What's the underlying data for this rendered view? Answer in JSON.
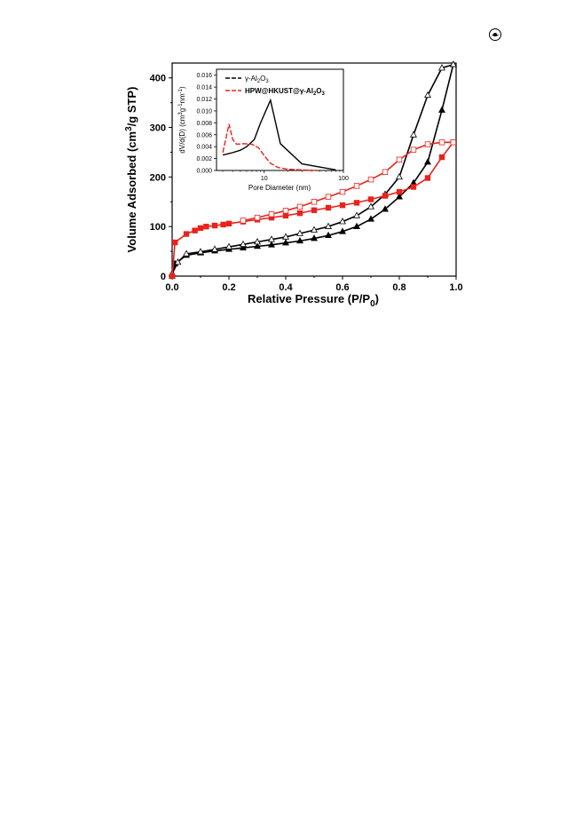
{
  "page": {
    "corner_icon": "circled-dot-icon"
  },
  "chart_data": [
    {
      "type": "scatter",
      "title": "",
      "xlabel": "Relative Pressure (P/P0)",
      "ylabel": "Volume Adsorbed (cm3/g STP)",
      "xlabel_parts": {
        "main": "Relative Pressure (P/P",
        "sub": "0",
        "end": ")"
      },
      "ylabel_parts": {
        "main": "Volume Adsorbed (cm",
        "sup": "3",
        "end": "/g STP)"
      },
      "xlim": [
        0.0,
        1.0
      ],
      "ylim": [
        0,
        430
      ],
      "x_ticks": [
        "0.0",
        "0.2",
        "0.4",
        "0.6",
        "0.8",
        "1.0"
      ],
      "y_ticks": [
        "0",
        "100",
        "200",
        "300",
        "400"
      ],
      "series": [
        {
          "branch": "adsorption",
          "color": "#000000",
          "marker": "filled-triangle",
          "x": [
            0.0,
            0.01,
            0.05,
            0.1,
            0.15,
            0.2,
            0.25,
            0.3,
            0.35,
            0.4,
            0.45,
            0.5,
            0.55,
            0.6,
            0.65,
            0.7,
            0.75,
            0.8,
            0.85,
            0.9,
            0.95,
            0.99
          ],
          "y": [
            0,
            25,
            42,
            47,
            51,
            54,
            57,
            60,
            63,
            67,
            71,
            76,
            82,
            90,
            100,
            115,
            135,
            160,
            188,
            230,
            335,
            427
          ]
        },
        {
          "branch": "desorption",
          "color": "#000000",
          "marker": "open-triangle",
          "x": [
            0.99,
            0.95,
            0.9,
            0.85,
            0.8,
            0.75,
            0.7,
            0.65,
            0.6,
            0.55,
            0.5,
            0.45,
            0.4,
            0.35,
            0.3,
            0.25,
            0.2,
            0.15,
            0.1,
            0.05,
            0.02,
            0.0
          ],
          "y": [
            427,
            420,
            365,
            285,
            200,
            165,
            140,
            122,
            110,
            100,
            93,
            86,
            79,
            74,
            69,
            64,
            59,
            54,
            49,
            45,
            28,
            5
          ]
        },
        {
          "branch": "adsorption",
          "color": "#e8231c",
          "marker": "filled-square",
          "x": [
            0.0,
            0.01,
            0.05,
            0.08,
            0.1,
            0.12,
            0.15,
            0.18,
            0.2,
            0.25,
            0.3,
            0.35,
            0.4,
            0.45,
            0.5,
            0.55,
            0.6,
            0.65,
            0.7,
            0.75,
            0.8,
            0.85,
            0.9,
            0.95,
            0.99
          ],
          "y": [
            0,
            68,
            85,
            92,
            97,
            100,
            102,
            104,
            106,
            110,
            114,
            118,
            122,
            127,
            133,
            138,
            143,
            148,
            155,
            162,
            170,
            180,
            198,
            240,
            270
          ]
        },
        {
          "branch": "desorption",
          "color": "#e8231c",
          "marker": "open-square",
          "x": [
            0.99,
            0.95,
            0.9,
            0.85,
            0.8,
            0.75,
            0.7,
            0.65,
            0.6,
            0.55,
            0.5,
            0.45,
            0.4,
            0.35,
            0.3,
            0.25
          ],
          "y": [
            270,
            270,
            266,
            255,
            235,
            210,
            195,
            182,
            170,
            160,
            150,
            140,
            132,
            125,
            118,
            112
          ]
        }
      ]
    },
    {
      "type": "line",
      "inset": true,
      "title": "",
      "xlabel": "Pore Diameter (nm)",
      "ylabel": "dV/d(D) (cm3g-1nm-1)",
      "ylabel_parts": {
        "a": "dV/d(D) (cm",
        "s1": "3",
        "b": "g",
        "s2": "-1",
        "c": "nm",
        "s3": "-1",
        "d": ")"
      },
      "x_scale": "log",
      "xlim": [
        2.5,
        100
      ],
      "ylim": [
        0,
        0.017
      ],
      "x_ticks": [
        "10",
        "100"
      ],
      "y_ticks": [
        "0.000",
        "0.002",
        "0.004",
        "0.006",
        "0.008",
        "0.010",
        "0.012",
        "0.014",
        "0.016"
      ],
      "legend_position": "top-left",
      "series": [
        {
          "name": "γ-Al2O3",
          "name_parts": {
            "a": "γ-Al",
            "s1": "2",
            "b": "O",
            "s2": "3"
          },
          "color": "#000000",
          "x": [
            3.0,
            3.5,
            4.0,
            5.0,
            6.0,
            7.5,
            9.0,
            12.0,
            16.0,
            30.0,
            80.0
          ],
          "y": [
            0.0026,
            0.0028,
            0.003,
            0.0034,
            0.004,
            0.0052,
            0.008,
            0.0118,
            0.0045,
            0.0011,
            0.0001
          ]
        },
        {
          "name": "HPW@HKUST@γ-Al2O3",
          "name_parts": {
            "a": "HPW@HKUST@γ-Al",
            "s1": "2",
            "b": "O",
            "s2": "3"
          },
          "color": "#e8231c",
          "x": [
            3.0,
            3.3,
            3.6,
            4.0,
            4.5,
            5.5,
            7.0,
            8.5,
            10.0,
            12.0,
            15.0,
            20.0,
            30.0,
            45.0
          ],
          "y": [
            0.003,
            0.0055,
            0.0078,
            0.0052,
            0.0044,
            0.0045,
            0.0044,
            0.0038,
            0.0025,
            0.0012,
            0.0005,
            0.0002,
            0.0001,
            0.0
          ]
        }
      ]
    }
  ]
}
